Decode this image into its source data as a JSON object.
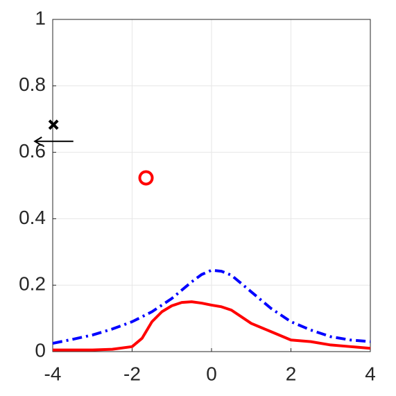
{
  "chart_data": {
    "type": "line",
    "xlim": [
      -4,
      4
    ],
    "ylim": [
      0,
      1
    ],
    "xticks": [
      -4,
      -2,
      0,
      2,
      4
    ],
    "yticks": [
      0,
      0.2,
      0.4,
      0.6,
      0.8,
      1
    ],
    "grid": true,
    "series": [
      {
        "color": "#ff0000",
        "style": "solid",
        "x": [
          -4,
          -3.5,
          -3,
          -2.5,
          -2,
          -1.75,
          -1.5,
          -1.25,
          -1,
          -0.75,
          -0.5,
          -0.25,
          0,
          0.25,
          0.5,
          0.75,
          1,
          1.5,
          2,
          2.5,
          3,
          3.5,
          4
        ],
        "values": [
          0.005,
          0.005,
          0.005,
          0.007,
          0.015,
          0.04,
          0.09,
          0.12,
          0.138,
          0.148,
          0.15,
          0.146,
          0.14,
          0.135,
          0.125,
          0.105,
          0.085,
          0.06,
          0.035,
          0.03,
          0.02,
          0.015,
          0.01
        ]
      },
      {
        "color": "#0000ff",
        "style": "dashdot",
        "x": [
          -4,
          -3.5,
          -3,
          -2.5,
          -2,
          -1.5,
          -1,
          -0.5,
          -0.25,
          0,
          0.25,
          0.5,
          1,
          1.5,
          2,
          2.5,
          3,
          3.5,
          4
        ],
        "values": [
          0.025,
          0.037,
          0.05,
          0.068,
          0.09,
          0.12,
          0.16,
          0.21,
          0.232,
          0.245,
          0.242,
          0.23,
          0.18,
          0.13,
          0.09,
          0.065,
          0.045,
          0.035,
          0.03
        ]
      }
    ],
    "markers": [
      {
        "symbol": "circle",
        "color": "#ff0000",
        "x": -1.65,
        "y": 0.523
      },
      {
        "symbol": "cross",
        "color": "#000000",
        "x": -3.98,
        "y": 0.683
      }
    ],
    "arrow": {
      "color": "#000000",
      "x": [
        -3.48,
        -4.45
      ],
      "y": [
        0.633,
        0.633
      ]
    }
  }
}
